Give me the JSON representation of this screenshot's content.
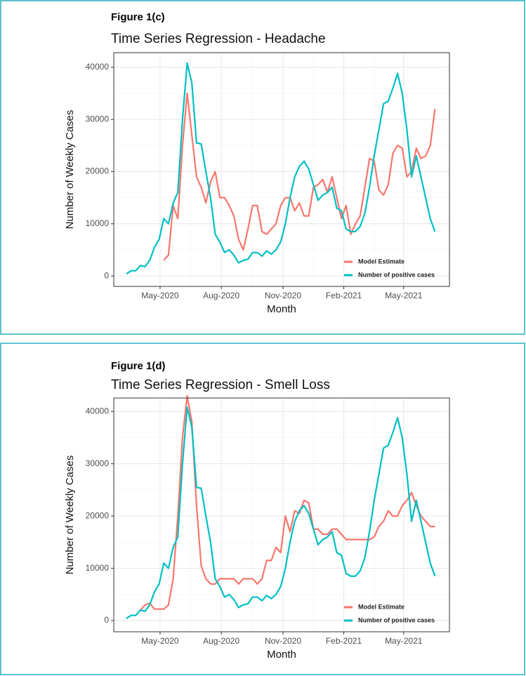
{
  "chart_data": [
    {
      "type": "line",
      "label": "Figure 1(c)",
      "title": "Time Series Regression - Headache",
      "x_label": "Month",
      "y_label": "Number of Weekly Cases",
      "x": [
        0,
        1,
        2,
        3,
        4,
        5,
        6,
        7,
        8,
        9,
        10,
        11,
        12,
        13,
        14,
        15,
        16,
        17,
        18,
        19,
        20,
        21,
        22,
        23,
        24,
        25,
        26,
        27,
        28,
        29,
        30,
        31,
        32,
        33,
        34,
        35,
        36,
        37,
        38,
        39,
        40,
        41,
        42,
        43,
        44,
        45,
        46,
        47,
        48,
        49,
        50,
        51,
        52,
        53,
        54,
        55,
        56,
        57,
        58,
        59,
        60,
        61,
        62,
        63,
        64,
        65,
        66
      ],
      "series": [
        {
          "name": "Model Estimate",
          "color": "#f8766d",
          "values": [
            null,
            null,
            null,
            null,
            null,
            null,
            null,
            null,
            3000,
            4000,
            13500,
            11000,
            25000,
            35000,
            27000,
            19000,
            17000,
            14000,
            18000,
            20000,
            15000,
            15000,
            13500,
            11500,
            7000,
            5000,
            9000,
            13500,
            13500,
            8500,
            8000,
            9000,
            10000,
            13500,
            15000,
            15000,
            12500,
            14000,
            11500,
            11500,
            17000,
            17500,
            18500,
            16000,
            19000,
            15000,
            11000,
            13500,
            8000,
            10000,
            11500,
            17000,
            22500,
            22000,
            16500,
            15500,
            17500,
            23500,
            25000,
            24500,
            19000,
            20000,
            24500,
            22500,
            23000,
            25000,
            32000
          ]
        },
        {
          "name": "Number of positive cases",
          "color": "#00bfc4",
          "values": [
            400,
            1000,
            1000,
            2000,
            1800,
            3000,
            5500,
            7000,
            11000,
            10000,
            14000,
            16000,
            30000,
            40800,
            37000,
            25500,
            25300,
            20000,
            15000,
            8000,
            6500,
            4500,
            5000,
            4000,
            2500,
            3000,
            3200,
            4500,
            4500,
            3800,
            4800,
            4200,
            5000,
            6500,
            10000,
            15000,
            19000,
            21000,
            22000,
            20500,
            17500,
            14500,
            15500,
            16000,
            17000,
            13000,
            12500,
            9000,
            8500,
            8500,
            9500,
            12000,
            17000,
            23000,
            28000,
            33000,
            33500,
            36000,
            38800,
            35000,
            28000,
            19000,
            23000,
            19000,
            15000,
            11000,
            8500
          ]
        }
      ],
      "xlim": [
        -2.7,
        69.1
      ],
      "ylim": [
        -2000,
        42800
      ],
      "xticks": [
        {
          "value": 7.2,
          "label": "May-2020"
        },
        {
          "value": 20.3,
          "label": "Aug-2020"
        },
        {
          "value": 33.5,
          "label": "Nov-2020"
        },
        {
          "value": 46.5,
          "label": "Feb-2021"
        },
        {
          "value": 59.3,
          "label": "May-2021"
        }
      ],
      "yticks": [
        0,
        10000,
        20000,
        30000,
        40000
      ],
      "grid": true,
      "legend_position": "bottom-right"
    },
    {
      "type": "line",
      "label": "Figure 1(d)",
      "title": "Time Series Regression - Smell Loss",
      "x_label": "Month",
      "y_label": "Number of Weekly Cases",
      "x": [
        0,
        1,
        2,
        3,
        4,
        5,
        6,
        7,
        8,
        9,
        10,
        11,
        12,
        13,
        14,
        15,
        16,
        17,
        18,
        19,
        20,
        21,
        22,
        23,
        24,
        25,
        26,
        27,
        28,
        29,
        30,
        31,
        32,
        33,
        34,
        35,
        36,
        37,
        38,
        39,
        40,
        41,
        42,
        43,
        44,
        45,
        46,
        47,
        48,
        49,
        50,
        51,
        52,
        53,
        54,
        55,
        56,
        57,
        58,
        59,
        60,
        61,
        62,
        63,
        64,
        65,
        66
      ],
      "series": [
        {
          "name": "Model Estimate",
          "color": "#f8766d",
          "values": [
            null,
            null,
            null,
            2000,
            3000,
            3300,
            2200,
            2200,
            2200,
            3000,
            8000,
            20000,
            35000,
            43000,
            38000,
            22000,
            10500,
            8000,
            7000,
            7000,
            8000,
            8000,
            8000,
            8000,
            7000,
            8000,
            8000,
            8000,
            7000,
            8000,
            11500,
            11500,
            14000,
            13000,
            20000,
            17000,
            21000,
            20500,
            23000,
            22500,
            17500,
            17500,
            16500,
            16500,
            17500,
            17500,
            16500,
            15500,
            15500,
            15500,
            15500,
            15500,
            15500,
            16000,
            18000,
            19000,
            21000,
            20000,
            20000,
            22000,
            23000,
            24500,
            22000,
            20000,
            19000,
            18000,
            18000
          ]
        },
        {
          "name": "Number of positive cases",
          "color": "#00bfc4",
          "values": [
            400,
            1000,
            1000,
            2000,
            1800,
            3000,
            5500,
            7000,
            11000,
            10000,
            14000,
            16000,
            30000,
            40800,
            37000,
            25500,
            25300,
            20000,
            15000,
            8000,
            6500,
            4500,
            5000,
            4000,
            2500,
            3000,
            3200,
            4500,
            4500,
            3800,
            4800,
            4200,
            5000,
            6500,
            10000,
            15000,
            19000,
            21000,
            22000,
            20500,
            17500,
            14500,
            15500,
            16000,
            17000,
            13000,
            12500,
            9000,
            8500,
            8500,
            9500,
            12000,
            17000,
            23000,
            28000,
            33000,
            33500,
            36000,
            38800,
            35000,
            28000,
            19000,
            23000,
            19000,
            15000,
            11000,
            8500
          ]
        }
      ],
      "xlim": [
        -2.7,
        69.1
      ],
      "ylim": [
        -2140,
        42570
      ],
      "xticks": [
        {
          "value": 7.2,
          "label": "May-2020"
        },
        {
          "value": 20.3,
          "label": "Aug-2020"
        },
        {
          "value": 33.5,
          "label": "Nov-2020"
        },
        {
          "value": 46.5,
          "label": "Feb-2021"
        },
        {
          "value": 59.3,
          "label": "May-2021"
        }
      ],
      "yticks": [
        0,
        10000,
        20000,
        30000,
        40000
      ],
      "grid": true,
      "legend_position": "bottom-right"
    }
  ]
}
